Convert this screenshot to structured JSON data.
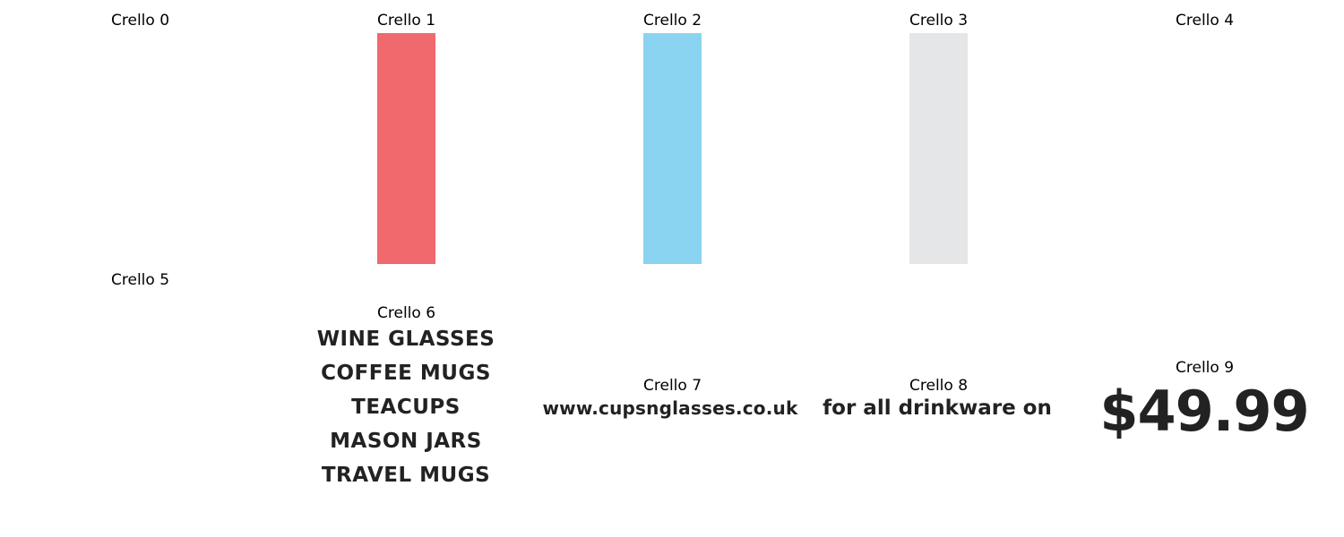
{
  "grid": {
    "cells": [
      {
        "label": "Crello 0"
      },
      {
        "label": "Crello 1",
        "swatch_color": "#f0696c"
      },
      {
        "label": "Crello 2",
        "swatch_color": "#8ad4f1"
      },
      {
        "label": "Crello 3",
        "swatch_color": "#e5e6e7"
      },
      {
        "label": "Crello 4"
      },
      {
        "label": "Crello 5"
      },
      {
        "label": "Crello 6",
        "lines": [
          "WINE GLASSES",
          "COFFEE MUGS",
          "TEACUPS",
          "MASON JARS",
          "TRAVEL MUGS"
        ]
      },
      {
        "label": "Crello 7",
        "text": "www.cupsnglasses.co.uk"
      },
      {
        "label": "Crello 8",
        "text": "for all drinkware on"
      },
      {
        "label": "Crello 9",
        "text": "$49.99"
      }
    ]
  },
  "colors": {
    "text_dark": "#222222",
    "background": "#ffffff"
  }
}
